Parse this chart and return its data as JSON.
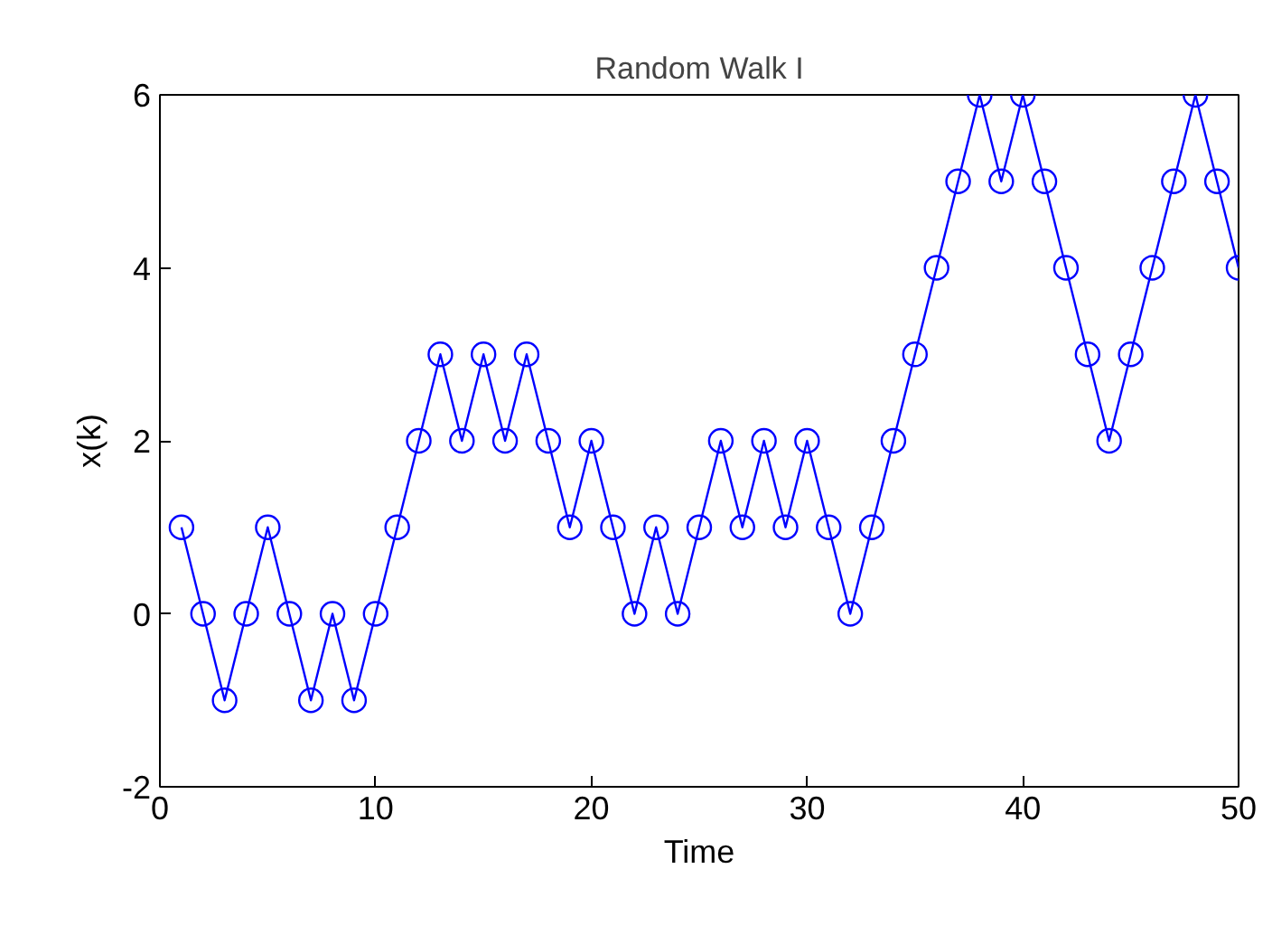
{
  "chart_data": {
    "type": "line",
    "title": "Random Walk I",
    "xlabel": "Time",
    "ylabel": "x(k)",
    "x": [
      1,
      2,
      3,
      4,
      5,
      6,
      7,
      8,
      9,
      10,
      11,
      12,
      13,
      14,
      15,
      16,
      17,
      18,
      19,
      20,
      21,
      22,
      23,
      24,
      25,
      26,
      27,
      28,
      29,
      30,
      31,
      32,
      33,
      34,
      35,
      36,
      37,
      38,
      39,
      40,
      41,
      42,
      43,
      44,
      45,
      46,
      47,
      48,
      49,
      50
    ],
    "series": [
      {
        "color": "#0000ff",
        "values": [
          1,
          0,
          -1,
          0,
          1,
          0,
          -1,
          0,
          -1,
          0,
          1,
          2,
          3,
          2,
          3,
          2,
          3,
          2,
          1,
          2,
          1,
          0,
          1,
          0,
          1,
          2,
          1,
          2,
          1,
          2,
          1,
          0,
          1,
          2,
          3,
          4,
          5,
          6,
          5,
          6,
          5,
          4,
          3,
          2,
          3,
          4,
          5,
          6,
          5,
          4
        ]
      }
    ],
    "xlim": [
      0,
      50
    ],
    "ylim": [
      -2,
      6
    ],
    "xticks": [
      0,
      10,
      20,
      30,
      40,
      50
    ],
    "yticks": [
      -2,
      0,
      2,
      4,
      6
    ],
    "grid": false,
    "marker": "circle",
    "line_style": "solid"
  }
}
